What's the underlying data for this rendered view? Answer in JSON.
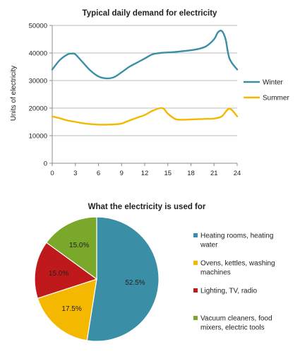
{
  "chart_data": [
    {
      "type": "line",
      "title": "Typical daily demand for electricity",
      "xlabel": "",
      "ylabel": "Units of electricity",
      "xlim": [
        0,
        24
      ],
      "ylim": [
        0,
        50000
      ],
      "x_ticks": [
        "0",
        "3",
        "6",
        "9",
        "12",
        "15",
        "18",
        "21",
        "24"
      ],
      "y_ticks": [
        "0",
        "10000",
        "20000",
        "30000",
        "40000",
        "50000"
      ],
      "grid": "horizontal",
      "legend": "right",
      "series": [
        {
          "name": "Winter",
          "color": "#3a8ea5",
          "x": [
            0,
            1,
            2,
            2.5,
            3,
            4,
            5,
            6,
            7,
            8,
            9,
            10,
            11,
            12,
            13,
            14,
            15,
            16,
            17,
            18,
            19,
            20,
            21,
            21.5,
            22,
            22.5,
            23,
            24
          ],
          "y": [
            34000,
            37500,
            39500,
            39800,
            39500,
            36500,
            33500,
            31500,
            30800,
            31200,
            33000,
            35000,
            36500,
            38000,
            39500,
            40000,
            40200,
            40400,
            40700,
            41000,
            41500,
            42500,
            45000,
            47500,
            48000,
            45000,
            38000,
            34000
          ]
        },
        {
          "name": "Summer",
          "color": "#f5b800",
          "x": [
            0,
            1,
            2,
            3,
            4,
            5,
            6,
            7,
            8,
            9,
            10,
            11,
            12,
            13,
            14,
            14.5,
            15,
            16,
            17,
            18,
            19,
            20,
            21,
            22,
            23,
            24
          ],
          "y": [
            17000,
            16300,
            15500,
            15000,
            14500,
            14200,
            14000,
            14000,
            14100,
            14400,
            15500,
            16500,
            17500,
            19000,
            20000,
            19700,
            18000,
            16000,
            15800,
            15900,
            16000,
            16100,
            16200,
            17000,
            19800,
            17000
          ]
        }
      ]
    },
    {
      "type": "pie",
      "title": "What the electricity is used for",
      "legend": "right",
      "slices": [
        {
          "label": "Heating rooms, heating water",
          "legend_lines": [
            "Heating rooms, heating",
            "water"
          ],
          "value": 52.5,
          "display": "52.5%",
          "color": "#3a8ea5"
        },
        {
          "label": "Ovens, kettles, washing machines",
          "legend_lines": [
            "Ovens, kettles, washing",
            "machines"
          ],
          "value": 17.5,
          "display": "17.5%",
          "color": "#f5b800"
        },
        {
          "label": "Lighting, TV, radio",
          "legend_lines": [
            "Lighting, TV, radio"
          ],
          "value": 15.0,
          "display": "15.0%",
          "color": "#c0191c"
        },
        {
          "label": "Vacuum cleaners, food mixers, electric tools",
          "legend_lines": [
            "Vacuum cleaners, food",
            "mixers, electric tools"
          ],
          "value": 15.0,
          "display": "15.0%",
          "color": "#7aa82a"
        }
      ]
    }
  ]
}
